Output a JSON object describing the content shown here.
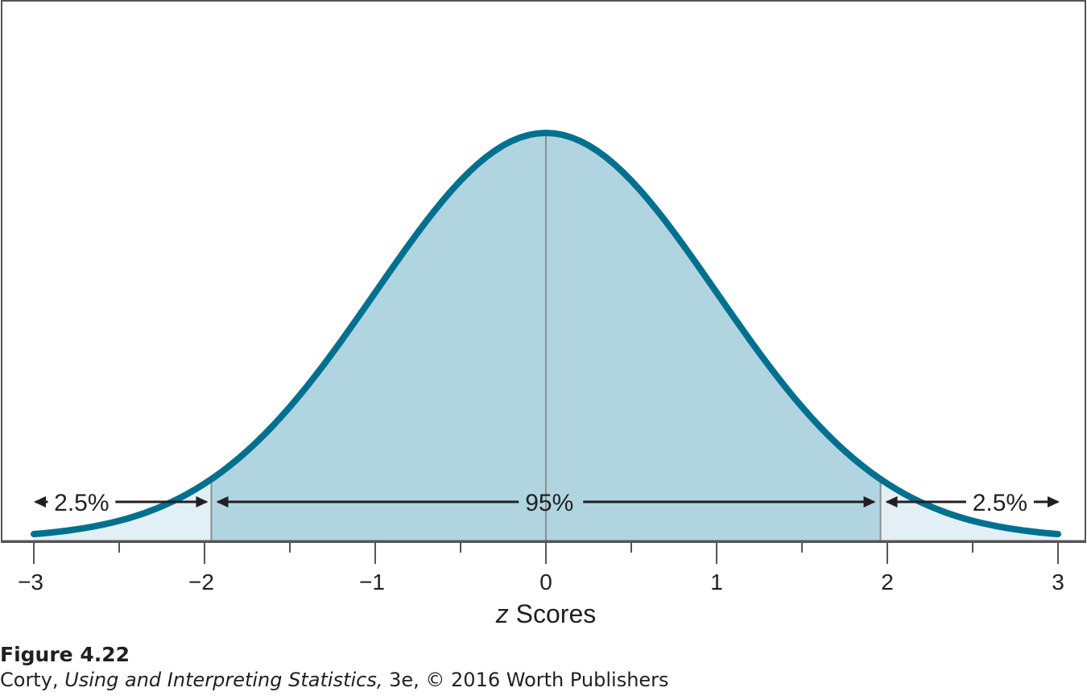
{
  "figure": {
    "label": "Figure 4.22",
    "credit": {
      "author": "Corty, ",
      "book_title": "Using and Interpreting Statistics,",
      "rest": " 3e, © 2016 Worth Publishers"
    }
  },
  "colors": {
    "curve": "#00708f",
    "center_fill": "#b1d4e1",
    "tail_fill": "#e2eff4",
    "divider": "#8c8c8c",
    "axis": "#555555",
    "text": "#231f20",
    "border": "#555555"
  },
  "chart_data": {
    "type": "area",
    "distribution": "standard normal",
    "x_range": [
      -3,
      3
    ],
    "major_ticks": [
      -3,
      -2,
      -1,
      0,
      1,
      2,
      3
    ],
    "tick_labels": [
      "−3",
      "−2",
      "−1",
      "0",
      "1",
      "2",
      "3"
    ],
    "minor_ticks": [
      -2.5,
      -1.5,
      -0.5,
      0.5,
      1.5,
      2.5
    ],
    "xlabel_italic": "z",
    "xlabel_rest": " Scores",
    "ylabel": "",
    "title": "",
    "cutoffs": [
      -1.96,
      1.96
    ],
    "mean_line": 0,
    "regions": [
      {
        "name": "lower tail",
        "from": -3,
        "to": -1.96,
        "percent": 2.5,
        "label": "2.5%"
      },
      {
        "name": "middle",
        "from": -1.96,
        "to": 1.96,
        "percent": 95,
        "label": "95%"
      },
      {
        "name": "upper tail",
        "from": 1.96,
        "to": 3,
        "percent": 2.5,
        "label": "2.5%"
      }
    ],
    "grid": false,
    "legend": "none"
  }
}
